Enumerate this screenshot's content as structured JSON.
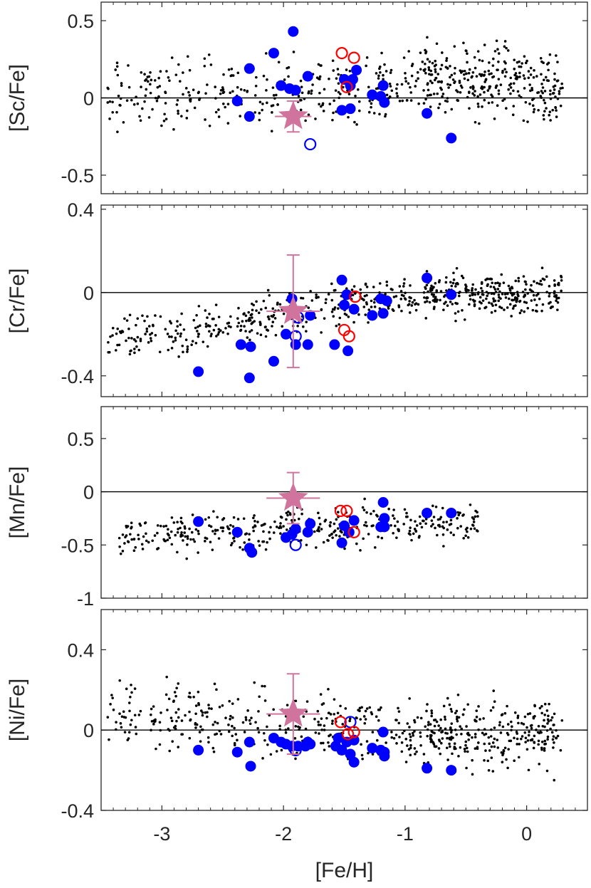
{
  "chart_data": {
    "type": "scatter",
    "xlabel": "[Fe/H]",
    "xlim": [
      -3.5,
      0.5
    ],
    "xticks": [
      -3,
      -2,
      -1,
      0
    ],
    "xtick_labels": [
      "-3",
      "-2",
      "-1",
      "0"
    ],
    "colors": {
      "field": "#000000",
      "filled": "#0000ff",
      "open_blue": "#0000ff",
      "open_red": "#ff0000",
      "star": "#d0739d",
      "frame": "#262626",
      "zero_line": "#000000"
    },
    "panels": [
      {
        "ylabel": "[Sc/Fe]",
        "ylim": [
          -0.62,
          0.62
        ],
        "yticks": [
          -0.5,
          0,
          0.5
        ],
        "ytick_labels": [
          "-0.5",
          "0",
          "0.5"
        ],
        "filled": [
          [
            -2.28,
            0.19
          ],
          [
            -1.92,
            0.43
          ],
          [
            -2.08,
            0.29
          ],
          [
            -1.8,
            0.14
          ],
          [
            -2.38,
            -0.02
          ],
          [
            -2.28,
            -0.12
          ],
          [
            -2.02,
            0.08
          ],
          [
            -1.95,
            0.06
          ],
          [
            -1.9,
            0.05
          ],
          [
            -1.5,
            0.12
          ],
          [
            -1.4,
            0.18
          ],
          [
            -1.43,
            0.12
          ],
          [
            -1.45,
            0.08
          ],
          [
            -1.27,
            0.02
          ],
          [
            -1.18,
            0.08
          ],
          [
            -1.2,
            0.01
          ],
          [
            -1.17,
            -0.03
          ],
          [
            -1.52,
            -0.08
          ],
          [
            -1.45,
            -0.07
          ],
          [
            -0.82,
            -0.1
          ],
          [
            -0.62,
            -0.26
          ]
        ],
        "open_blue": [
          [
            -1.78,
            -0.3
          ]
        ],
        "open_red": [
          [
            -1.52,
            0.29
          ],
          [
            -1.42,
            0.26
          ],
          [
            -1.48,
            0.07
          ]
        ],
        "star": {
          "x": -1.92,
          "y": -0.12,
          "xerr": 0.15,
          "yerr": 0.1
        }
      },
      {
        "ylabel": "[Cr/Fe]",
        "ylim": [
          -0.5,
          0.42
        ],
        "yticks": [
          -0.4,
          0,
          0.4
        ],
        "ytick_labels": [
          "-0.4",
          "0",
          "0.4"
        ],
        "filled": [
          [
            -2.7,
            -0.38
          ],
          [
            -2.28,
            -0.41
          ],
          [
            -2.35,
            -0.25
          ],
          [
            -2.27,
            -0.26
          ],
          [
            -2.08,
            -0.33
          ],
          [
            -1.98,
            -0.2
          ],
          [
            -1.9,
            -0.25
          ],
          [
            -1.8,
            -0.25
          ],
          [
            -1.93,
            -0.03
          ],
          [
            -1.78,
            -0.11
          ],
          [
            -1.52,
            0.06
          ],
          [
            -1.48,
            -0.01
          ],
          [
            -1.42,
            -0.08
          ],
          [
            -1.5,
            -0.06
          ],
          [
            -1.58,
            -0.25
          ],
          [
            -1.47,
            -0.28
          ],
          [
            -1.2,
            -0.03
          ],
          [
            -1.18,
            -0.1
          ],
          [
            -1.27,
            -0.11
          ],
          [
            -1.15,
            -0.04
          ],
          [
            -0.82,
            0.07
          ],
          [
            -0.62,
            -0.01
          ]
        ],
        "open_blue": [
          [
            -1.88,
            -0.12
          ],
          [
            -1.9,
            -0.21
          ]
        ],
        "open_red": [
          [
            -1.5,
            -0.18
          ],
          [
            -1.46,
            -0.21
          ],
          [
            -1.41,
            -0.02
          ]
        ],
        "star": {
          "x": -1.92,
          "y": -0.09,
          "xerr": 0.22,
          "yerr": 0.27
        }
      },
      {
        "ylabel": "[Mn/Fe]",
        "ylim": [
          -1.0,
          0.8
        ],
        "yticks": [
          -1,
          -0.5,
          0,
          0.5
        ],
        "ytick_labels": [
          "-1",
          "-0.5",
          "0",
          "0.5"
        ],
        "filled": [
          [
            -2.7,
            -0.28
          ],
          [
            -2.38,
            -0.38
          ],
          [
            -2.28,
            -0.53
          ],
          [
            -2.26,
            -0.57
          ],
          [
            -1.98,
            -0.43
          ],
          [
            -1.93,
            -0.4
          ],
          [
            -1.9,
            -0.35
          ],
          [
            -1.8,
            -0.38
          ],
          [
            -1.78,
            -0.3
          ],
          [
            -1.5,
            -0.32
          ],
          [
            -1.42,
            -0.27
          ],
          [
            -1.52,
            -0.48
          ],
          [
            -1.46,
            -0.38
          ],
          [
            -1.18,
            -0.1
          ],
          [
            -1.17,
            -0.25
          ],
          [
            -1.2,
            -0.33
          ],
          [
            -1.17,
            -0.33
          ],
          [
            -0.82,
            -0.2
          ],
          [
            -0.62,
            -0.2
          ]
        ],
        "open_blue": [
          [
            -1.9,
            -0.5
          ]
        ],
        "open_red": [
          [
            -1.53,
            -0.18
          ],
          [
            -1.48,
            -0.18
          ],
          [
            -1.42,
            -0.38
          ]
        ],
        "star": {
          "x": -1.92,
          "y": -0.06,
          "xerr": 0.22,
          "yerr": 0.24
        }
      },
      {
        "ylabel": "[Ni/Fe]",
        "ylim": [
          -0.4,
          0.6
        ],
        "yticks": [
          -0.4,
          0,
          0.4
        ],
        "ytick_labels": [
          "-0.4",
          "0",
          "0.4"
        ],
        "filled": [
          [
            -2.7,
            -0.1
          ],
          [
            -2.38,
            -0.11
          ],
          [
            -2.27,
            -0.18
          ],
          [
            -2.28,
            -0.06
          ],
          [
            -2.08,
            -0.04
          ],
          [
            -2.02,
            -0.06
          ],
          [
            -1.98,
            -0.07
          ],
          [
            -1.93,
            -0.08
          ],
          [
            -1.88,
            -0.08
          ],
          [
            -1.8,
            -0.06
          ],
          [
            -1.78,
            -0.07
          ],
          [
            -1.82,
            -0.08
          ],
          [
            -1.55,
            -0.04
          ],
          [
            -1.57,
            -0.08
          ],
          [
            -1.52,
            -0.1
          ],
          [
            -1.48,
            -0.06
          ],
          [
            -1.42,
            -0.05
          ],
          [
            -1.45,
            -0.12
          ],
          [
            -1.42,
            -0.16
          ],
          [
            -1.27,
            -0.09
          ],
          [
            -1.18,
            -0.01
          ],
          [
            -1.2,
            -0.1
          ],
          [
            -1.17,
            -0.13
          ],
          [
            -1.17,
            -0.11
          ],
          [
            -0.82,
            -0.19
          ],
          [
            -0.62,
            -0.2
          ]
        ],
        "open_blue": [
          [
            -1.9,
            -0.1
          ],
          [
            -1.45,
            0.04
          ]
        ],
        "open_red": [
          [
            -1.53,
            0.04
          ],
          [
            -1.47,
            -0.02
          ],
          [
            -1.42,
            -0.01
          ]
        ],
        "star": {
          "x": -1.92,
          "y": 0.08,
          "xerr": 0.22,
          "yerr": 0.2
        }
      }
    ]
  }
}
